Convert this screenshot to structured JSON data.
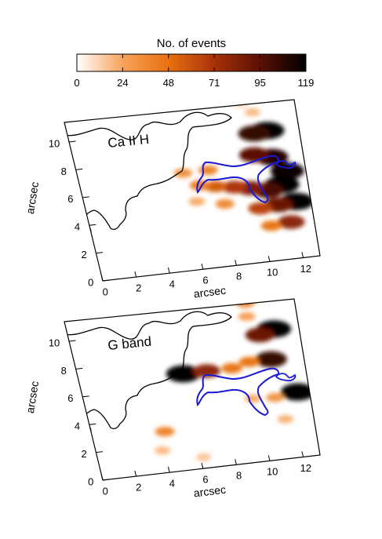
{
  "colorbar": {
    "title": "No. of events",
    "ticks": [
      "0",
      "24",
      "48",
      "71",
      "95",
      "119"
    ],
    "min": 0,
    "max": 119,
    "colors": [
      "#ffffff",
      "#f7a35a",
      "#e8700f",
      "#a8320a",
      "#5a1004",
      "#000000"
    ]
  },
  "chart_data": [
    {
      "type": "heatmap",
      "label": "Ca II H",
      "xlabel": "arcsec",
      "ylabel": "arcsec",
      "xticks": [
        "0",
        "2",
        "4",
        "6",
        "8",
        "10",
        "12"
      ],
      "yticks": [
        "0",
        "2",
        "4",
        "6",
        "8",
        "10"
      ],
      "xlim": [
        0,
        13
      ],
      "ylim": [
        0,
        11.5
      ],
      "blobs": [
        {
          "x": 11.7,
          "y": 9.2,
          "value": 119
        },
        {
          "x": 10.9,
          "y": 9.1,
          "value": 105
        },
        {
          "x": 11.6,
          "y": 7.3,
          "value": 110
        },
        {
          "x": 10.6,
          "y": 7.6,
          "value": 95
        },
        {
          "x": 12.3,
          "y": 6.2,
          "value": 115
        },
        {
          "x": 11.8,
          "y": 5.3,
          "value": 119
        },
        {
          "x": 10.9,
          "y": 5.0,
          "value": 100
        },
        {
          "x": 9.9,
          "y": 5.3,
          "value": 85
        },
        {
          "x": 9.0,
          "y": 5.5,
          "value": 70
        },
        {
          "x": 7.9,
          "y": 5.7,
          "value": 55
        },
        {
          "x": 7.0,
          "y": 5.9,
          "value": 42
        },
        {
          "x": 12.4,
          "y": 4.0,
          "value": 119
        },
        {
          "x": 11.3,
          "y": 3.9,
          "value": 90
        },
        {
          "x": 10.2,
          "y": 3.8,
          "value": 65
        },
        {
          "x": 11.8,
          "y": 2.6,
          "value": 80
        },
        {
          "x": 10.6,
          "y": 2.5,
          "value": 45
        },
        {
          "x": 8.2,
          "y": 4.4,
          "value": 35
        },
        {
          "x": 6.6,
          "y": 4.8,
          "value": 22
        },
        {
          "x": 7.7,
          "y": 6.9,
          "value": 38
        },
        {
          "x": 6.2,
          "y": 6.9,
          "value": 32
        },
        {
          "x": 11.1,
          "y": 10.6,
          "value": 18
        },
        {
          "x": 10.5,
          "y": 11.3,
          "value": 12
        }
      ]
    },
    {
      "type": "heatmap",
      "label": "G band",
      "xlabel": "arcsec",
      "ylabel": "arcsec",
      "xticks": [
        "0",
        "2",
        "4",
        "6",
        "8",
        "10",
        "12"
      ],
      "yticks": [
        "0",
        "2",
        "4",
        "6",
        "8",
        "10"
      ],
      "xlim": [
        0,
        13
      ],
      "ylim": [
        0,
        11.5
      ],
      "blobs": [
        {
          "x": 12.1,
          "y": 9.2,
          "value": 119
        },
        {
          "x": 11.2,
          "y": 8.9,
          "value": 90
        },
        {
          "x": 11.5,
          "y": 7.1,
          "value": 105
        },
        {
          "x": 10.2,
          "y": 7.1,
          "value": 45
        },
        {
          "x": 6.2,
          "y": 6.8,
          "value": 119
        },
        {
          "x": 7.6,
          "y": 6.8,
          "value": 80
        },
        {
          "x": 9.1,
          "y": 6.8,
          "value": 45
        },
        {
          "x": 12.6,
          "y": 4.6,
          "value": 119
        },
        {
          "x": 11.2,
          "y": 4.4,
          "value": 30
        },
        {
          "x": 9.9,
          "y": 4.5,
          "value": 22
        },
        {
          "x": 4.3,
          "y": 2.9,
          "value": 38
        },
        {
          "x": 3.9,
          "y": 1.6,
          "value": 18
        },
        {
          "x": 6.2,
          "y": 0.8,
          "value": 15
        },
        {
          "x": 10.8,
          "y": 11.3,
          "value": 40
        },
        {
          "x": 10.7,
          "y": 10.3,
          "value": 25
        },
        {
          "x": 11.5,
          "y": 2.8,
          "value": 20
        }
      ]
    }
  ]
}
